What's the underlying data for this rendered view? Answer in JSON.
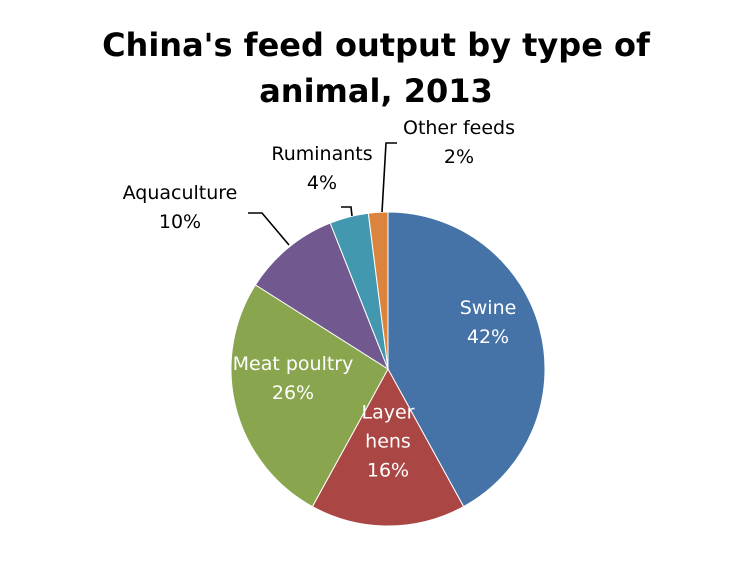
{
  "chart_data": {
    "type": "pie",
    "title_lines": [
      "China's feed output by type of",
      "animal, 2013"
    ],
    "slices": [
      {
        "name": "Swine",
        "percent_label": "42%",
        "value": 42,
        "color": "#4572A7",
        "label_color": "#ffffff"
      },
      {
        "name": "Layer hens",
        "name_lines": [
          "Layer",
          "hens"
        ],
        "percent_label": "16%",
        "value": 16,
        "color": "#AA4643",
        "label_color": "#ffffff"
      },
      {
        "name": "Meat poultry",
        "percent_label": "26%",
        "value": 26,
        "color": "#89A54E",
        "label_color": "#ffffff"
      },
      {
        "name": "Aquaculture",
        "percent_label": "10%",
        "value": 10,
        "color": "#71588F",
        "label_color": "#000000"
      },
      {
        "name": "Ruminants",
        "percent_label": "4%",
        "value": 4,
        "color": "#4198AF",
        "label_color": "#000000"
      },
      {
        "name": "Other feeds",
        "percent_label": "2%",
        "value": 2,
        "color": "#DB843D",
        "label_color": "#000000"
      }
    ],
    "legend": "none"
  }
}
